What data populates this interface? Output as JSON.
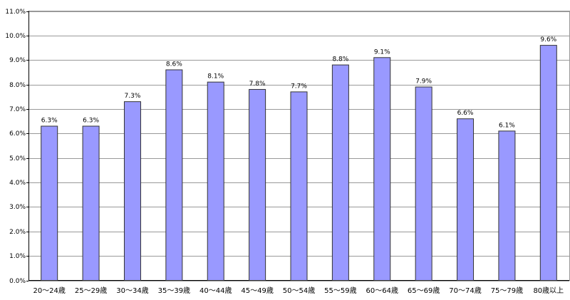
{
  "chart_data": {
    "type": "bar",
    "categories": [
      "20～24歳",
      "25～29歳",
      "30～34歳",
      "35～39歳",
      "40～44歳",
      "45～49歳",
      "50～54歳",
      "55～59歳",
      "60～64歳",
      "65～69歳",
      "70～74歳",
      "75～79歳",
      "80歳以上"
    ],
    "values": [
      6.3,
      6.3,
      7.3,
      8.6,
      8.1,
      7.8,
      7.7,
      8.8,
      9.1,
      7.9,
      6.6,
      6.1,
      9.6
    ],
    "value_labels": [
      "6.3%",
      "6.3%",
      "7.3%",
      "8.6%",
      "8.1%",
      "7.8%",
      "7.7%",
      "8.8%",
      "9.1%",
      "7.9%",
      "6.6%",
      "6.1%",
      "9.6%"
    ],
    "color": "#9999ff",
    "ylim": [
      0,
      11
    ],
    "yticks": [
      {
        "value": 0,
        "label": "0.0%"
      },
      {
        "value": 1,
        "label": "1.0%"
      },
      {
        "value": 2,
        "label": "2.0%"
      },
      {
        "value": 3,
        "label": "3.0%"
      },
      {
        "value": 4,
        "label": "4.0%"
      },
      {
        "value": 5,
        "label": "5.0%"
      },
      {
        "value": 6,
        "label": "6.0%"
      },
      {
        "value": 7,
        "label": "7.0%"
      },
      {
        "value": 8,
        "label": "8.0%"
      },
      {
        "value": 9,
        "label": "9.0%"
      },
      {
        "value": 10,
        "label": "10.0%"
      },
      {
        "value": 11,
        "label": "11.0%"
      }
    ],
    "grid": true
  }
}
